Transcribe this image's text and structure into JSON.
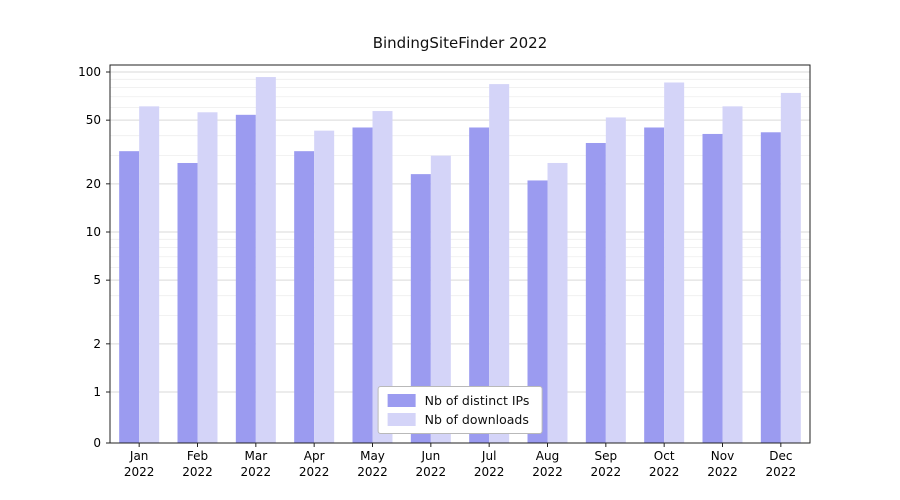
{
  "title": "BindingSiteFinder 2022",
  "chart_data": {
    "type": "bar",
    "title": "BindingSiteFinder 2022",
    "categories": [
      "Jan",
      "Feb",
      "Mar",
      "Apr",
      "May",
      "Jun",
      "Jul",
      "Aug",
      "Sep",
      "Oct",
      "Nov",
      "Dec"
    ],
    "year_label": "2022",
    "series": [
      {
        "name": "Nb of distinct IPs",
        "color": "#9b9bf0",
        "values": [
          32,
          27,
          54,
          32,
          45,
          23,
          45,
          21,
          36,
          45,
          41,
          42
        ]
      },
      {
        "name": "Nb of downloads",
        "color": "#d4d4f8",
        "values": [
          61,
          56,
          93,
          43,
          57,
          30,
          84,
          27,
          52,
          86,
          61,
          74
        ]
      }
    ],
    "yscale": "symlog",
    "yticks": [
      0,
      1,
      2,
      5,
      10,
      20,
      50,
      100
    ],
    "yminorticks": [
      3,
      4,
      6,
      7,
      8,
      9,
      30,
      40,
      60,
      70,
      80,
      90
    ],
    "ylim": [
      0,
      110
    ],
    "xlabel": "",
    "ylabel": "",
    "grid": true,
    "legend_position": "lower center",
    "colors": {
      "grid_major": "#d9d9d9",
      "grid_minor": "#ededed",
      "axis": "#222222",
      "text": "#000000"
    }
  }
}
